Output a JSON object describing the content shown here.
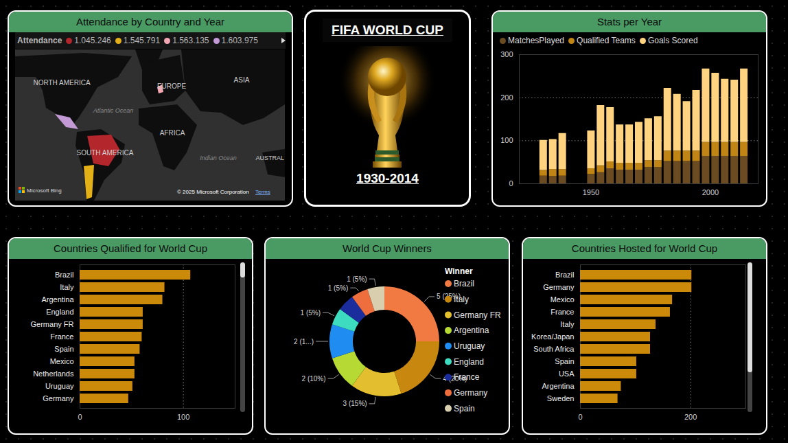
{
  "title": "FIFA WORLD CUP",
  "subtitle": "1930-2014",
  "chart_data": [
    {
      "type": "map",
      "title": "Attendance by Country and Year",
      "legend_title": "Attendance",
      "series": [
        {
          "name": "1.045.246",
          "color": "#b3262b"
        },
        {
          "name": "1.545.791",
          "color": "#e3b018"
        },
        {
          "name": "1.563.135",
          "color": "#f2a7b3"
        },
        {
          "name": "1.603.975",
          "color": "#c39ad6"
        }
      ],
      "annotations": [
        "NORTH AMERICA",
        "Atlantic Ocean",
        "EUROPE",
        "ASIA",
        "AFRICA",
        "SOUTH AMERICA",
        "Indian Ocean",
        "AUSTRAL",
        "Microsoft Bing",
        "© 2025 Microsoft Corporation",
        "Terms"
      ]
    },
    {
      "type": "bar",
      "title": "Stats per Year",
      "stacked": true,
      "grid": true,
      "legend": "top",
      "x": [
        1930,
        1934,
        1938,
        1950,
        1954,
        1958,
        1962,
        1966,
        1970,
        1974,
        1978,
        1982,
        1986,
        1990,
        1994,
        1998,
        2002,
        2006,
        2010,
        2014
      ],
      "xlim": [
        1920,
        2020
      ],
      "xticks": [
        1950,
        2000
      ],
      "ylim": [
        0,
        300
      ],
      "yticks": [
        0,
        100,
        200,
        300
      ],
      "series": [
        {
          "name": "MatchesPlayed",
          "color": "#6b4c22",
          "values": [
            18,
            17,
            18,
            22,
            26,
            35,
            32,
            32,
            32,
            38,
            38,
            52,
            52,
            52,
            52,
            64,
            64,
            64,
            64,
            64
          ]
        },
        {
          "name": "Qualified Teams",
          "color": "#c08515",
          "values": [
            13,
            16,
            15,
            13,
            16,
            16,
            16,
            16,
            16,
            16,
            16,
            24,
            24,
            24,
            24,
            32,
            32,
            32,
            32,
            32
          ]
        },
        {
          "name": "Goals Scored",
          "color": "#ffd37f",
          "values": [
            70,
            70,
            84,
            88,
            140,
            126,
            89,
            89,
            95,
            97,
            102,
            146,
            132,
            115,
            141,
            171,
            161,
            147,
            145,
            171
          ]
        }
      ]
    },
    {
      "type": "bar",
      "orientation": "horizontal",
      "title": "Countries Qualified for World Cup",
      "grid": true,
      "categories": [
        "Brazil",
        "Italy",
        "Argentina",
        "England",
        "Germany FR",
        "France",
        "Spain",
        "Mexico",
        "Netherlands",
        "Uruguay",
        "Germany"
      ],
      "values": [
        107,
        82,
        80,
        61,
        61,
        60,
        58,
        53,
        53,
        51,
        47
      ],
      "color": "#cc8a0a",
      "xlim": [
        0,
        150
      ],
      "xticks": [
        0,
        100
      ]
    },
    {
      "type": "donut",
      "title": "World Cup Winners",
      "legend_title": "Winner",
      "legend": "right",
      "data_labels": true,
      "categories": [
        "Brazil",
        "Italy",
        "Germany FR",
        "Argentina",
        "Uruguay",
        "England",
        "France",
        "Germany",
        "Spain"
      ],
      "values": [
        5,
        4,
        3,
        2,
        2,
        1,
        1,
        1,
        1
      ],
      "value_labels": [
        "5 (25%)",
        "4 (20%)",
        "3 (15%)",
        "2 (10%)",
        "2 (1...)",
        "1 (5%)",
        null,
        "1 (5%)",
        "1 (5%)"
      ],
      "colors": [
        "#f07a42",
        "#c8870f",
        "#e3bf2f",
        "#b6d934",
        "#1e8cf0",
        "#3ddcc0",
        "#1b2c9c",
        "#ef6e3d",
        "#d9cfae"
      ]
    },
    {
      "type": "bar",
      "orientation": "horizontal",
      "title": "Countries Hosted for World Cup",
      "grid": true,
      "categories": [
        "Brazil",
        "Germany",
        "Mexico",
        "France",
        "Italy",
        "Korea/Japan",
        "South Africa",
        "Spain",
        "USA",
        "Argentina",
        "Sweden"
      ],
      "values": [
        202,
        202,
        167,
        163,
        137,
        127,
        127,
        102,
        102,
        74,
        68
      ],
      "color": "#cc8a0a",
      "xlim": [
        0,
        300
      ],
      "xticks": [
        0,
        200
      ]
    }
  ]
}
